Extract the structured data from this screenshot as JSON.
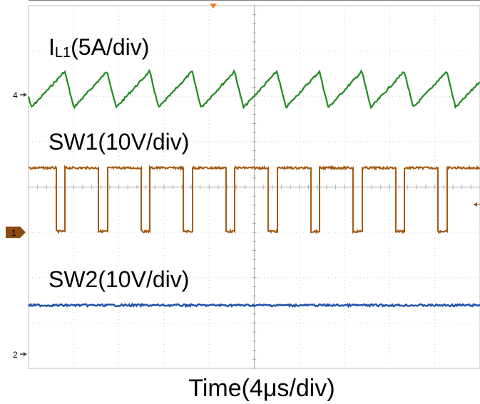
{
  "chart_data": {
    "type": "line",
    "title": "",
    "xlabel": "Time(4μs/div)",
    "grid": true,
    "divisions": {
      "x": 10,
      "y": 8
    },
    "channel_markers": [
      {
        "id": "ch4",
        "label": "4"
      },
      {
        "id": "ch1",
        "label": "1"
      },
      {
        "id": "ch2",
        "label": "2"
      }
    ],
    "series": [
      {
        "name": "IL1(5A/div)",
        "name_main": "I",
        "name_sub": "L1",
        "name_rest": "(5A/div)",
        "color": "#1f8a1f",
        "waveform": "sawtooth",
        "period_div": 0.94,
        "low_div": 2.75,
        "high_div": 3.55,
        "duty": 0.79
      },
      {
        "name": "SW1(10V/div)",
        "color": "#a35a12",
        "waveform": "square",
        "period_div": 0.94,
        "low_div": 0.02,
        "high_div": 1.42,
        "duty": 0.79
      },
      {
        "name": "SW2(10V/div)",
        "color": "#1f4fa8",
        "waveform": "flat",
        "level_div": -1.61
      }
    ]
  }
}
